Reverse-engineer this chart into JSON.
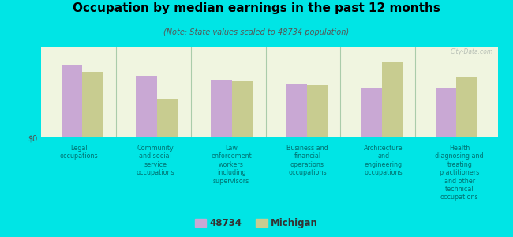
{
  "title": "Occupation by median earnings in the past 12 months",
  "subtitle": "(Note: State values scaled to 48734 population)",
  "background_color": "#00e5e5",
  "plot_bg_top": "#f0f5e0",
  "plot_bg_bottom": "#e0edd0",
  "bar_color_48734": "#c9a8d4",
  "bar_color_michigan": "#c8cc90",
  "watermark": "City-Data.com",
  "ylabel": "$0",
  "legend_labels": [
    "48734",
    "Michigan"
  ],
  "categories": [
    "Legal\noccupations",
    "Community\nand social\nservice\noccupations",
    "Law\nenforcement\nworkers\nincluding\nsupervisors",
    "Business and\nfinancial\noperations\noccupations",
    "Architecture\nand\nengineering\noccupations",
    "Health\ndiagnosing and\ntreating\npractitioners\nand other\ntechnical\noccupations"
  ],
  "values_48734": [
    0.85,
    0.72,
    0.67,
    0.63,
    0.58,
    0.57
  ],
  "values_michigan": [
    0.76,
    0.45,
    0.65,
    0.62,
    0.88,
    0.7
  ],
  "ylim": [
    0,
    1.05
  ],
  "bar_width": 0.28,
  "tick_label_color": "#007070",
  "separator_color": "#aaccaa"
}
